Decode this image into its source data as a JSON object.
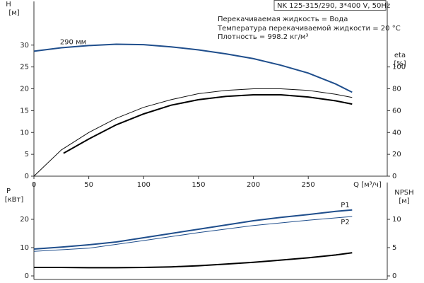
{
  "chart_data": [
    {
      "type": "line",
      "header": "NK 125-315/290, 3*400 V, 50Hz",
      "notes": [
        "Перекачиваемая жидкость = Вода",
        "Температура перекачиваемой жидкости = 20 °C",
        "Плотность = 998.2 кг/м³"
      ],
      "y_label": "H",
      "y_unit": "[м]",
      "y2_label": "eta",
      "y2_unit": "[%]",
      "x_label": "Q [м³/ч]",
      "xlim": [
        0,
        322
      ],
      "xticks": [
        0,
        50,
        100,
        150,
        200,
        250
      ],
      "ylim": [
        0,
        40
      ],
      "yticks": [
        0,
        5,
        10,
        15,
        20,
        25,
        30
      ],
      "y2lim": [
        0,
        160
      ],
      "y2ticks": [
        0,
        20,
        40,
        60,
        80,
        100
      ],
      "series": [
        {
          "name": "290 мм",
          "color": "#1f4e8c",
          "width": 2,
          "x": [
            0,
            25,
            50,
            75,
            100,
            125,
            150,
            175,
            200,
            225,
            250,
            275,
            290
          ],
          "values": [
            28.6,
            29.4,
            29.9,
            30.2,
            30.1,
            29.6,
            28.9,
            28.0,
            26.9,
            25.4,
            23.6,
            21.1,
            19.2
          ]
        },
        {
          "axis": "y2",
          "color": "#111111",
          "width": 1,
          "x": [
            0,
            25,
            50,
            75,
            100,
            125,
            150,
            175,
            200,
            225,
            250,
            275,
            290
          ],
          "values": [
            0,
            24,
            40,
            53,
            63,
            70,
            75.5,
            78.5,
            80,
            80,
            78.5,
            75,
            72
          ]
        },
        {
          "axis": "y2",
          "color": "#000000",
          "width": 2,
          "x": [
            27,
            50,
            75,
            100,
            125,
            150,
            175,
            200,
            225,
            250,
            275,
            290
          ],
          "values": [
            21,
            34,
            47,
            57,
            65,
            70,
            73,
            74.5,
            74.5,
            72.5,
            69,
            66
          ]
        }
      ]
    },
    {
      "type": "line",
      "y_label": "P",
      "y_unit": "[кВт]",
      "y2_label": "NPSH",
      "y2_unit": "[м]",
      "xlim": [
        0,
        322
      ],
      "ylim": [
        -1.25,
        33
      ],
      "yticks": [
        0,
        10,
        20
      ],
      "y2lim": [
        -0.625,
        16.5
      ],
      "y2ticks": [
        0,
        5,
        10
      ],
      "series": [
        {
          "name": "P1",
          "color": "#1f4e8c",
          "width": 2,
          "x": [
            0,
            25,
            50,
            75,
            100,
            125,
            150,
            175,
            200,
            225,
            250,
            275,
            290
          ],
          "values": [
            9.5,
            10.2,
            11,
            12,
            13.5,
            15,
            16.5,
            18,
            19.5,
            20.7,
            21.7,
            22.8,
            23.3
          ]
        },
        {
          "name": "P2",
          "color": "#1f4e8c",
          "width": 1,
          "x": [
            0,
            50,
            100,
            150,
            200,
            250,
            290
          ],
          "values": [
            8.7,
            9.8,
            12.5,
            15.3,
            17.8,
            19.7,
            21
          ]
        },
        {
          "axis": "y2",
          "color": "#000000",
          "width": 2,
          "x": [
            0,
            25,
            50,
            75,
            100,
            125,
            150,
            175,
            200,
            225,
            250,
            275,
            290
          ],
          "values": [
            1.5,
            1.5,
            1.45,
            1.45,
            1.5,
            1.6,
            1.8,
            2.1,
            2.4,
            2.8,
            3.2,
            3.7,
            4.1
          ]
        }
      ]
    }
  ]
}
